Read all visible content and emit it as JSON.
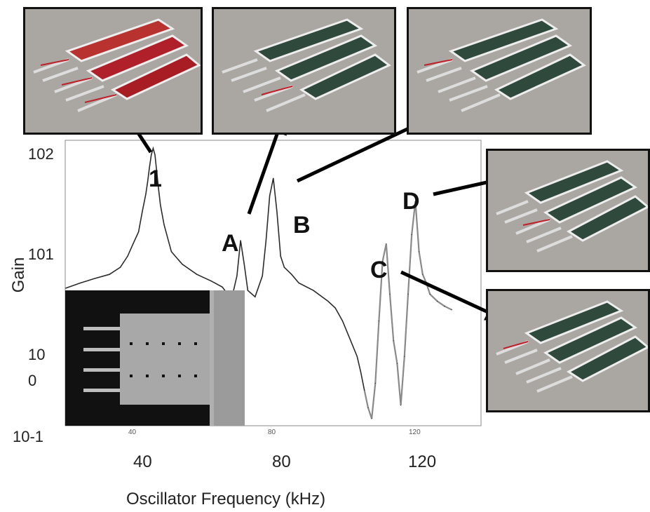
{
  "chart": {
    "y_axis_title": "Gain",
    "x_axis_title": "Oscillator Frequency (kHz)",
    "y_ticks": [
      {
        "id": "y102",
        "label": "102"
      },
      {
        "id": "y101",
        "label": "101"
      },
      {
        "id": "y10a",
        "label": "10"
      },
      {
        "id": "y0",
        "label": "0"
      },
      {
        "id": "y10m1",
        "label": "10-1"
      }
    ],
    "x_ticks": [
      {
        "id": "x40",
        "label": "40"
      },
      {
        "id": "x80",
        "label": "80"
      },
      {
        "id": "x120",
        "label": "120"
      }
    ],
    "inner_ticks": [
      "40",
      "80",
      "120"
    ],
    "peak_labels": {
      "p1": "1",
      "pA": "A",
      "pB": "B",
      "pC": "C",
      "pD": "D"
    }
  },
  "colors": {
    "curve_main": "#2b2b2b",
    "curve_grey": "#8a8a8a",
    "highlight": "#c0202a",
    "panel": "#2f4a3c",
    "thumb_bg": "#a9a6a1"
  },
  "chart_data": {
    "type": "line",
    "title": "",
    "xlabel": "Oscillator Frequency (kHz)",
    "ylabel": "Gain",
    "y_scale": "log",
    "xlim": [
      20,
      140
    ],
    "ylim": [
      0.1,
      160
    ],
    "grid": false,
    "series": [
      {
        "name": "",
        "x": [
          26,
          30,
          34,
          38,
          41,
          43,
          44.5,
          46,
          47,
          48,
          48.5,
          49,
          49.5,
          50,
          50.5,
          51,
          51.5,
          52,
          53,
          55,
          58,
          62,
          66,
          69,
          71,
          72,
          73,
          74,
          75,
          76,
          78,
          80,
          81,
          82,
          83,
          84,
          85,
          86,
          88,
          90,
          94,
          98,
          100,
          102,
          104,
          106,
          107,
          108,
          109,
          110,
          111,
          112,
          113,
          114,
          115,
          116,
          117,
          118,
          119,
          120,
          121,
          122,
          123,
          124,
          125,
          126,
          128,
          130,
          132
        ],
        "y": [
          3.5,
          4,
          4.5,
          5,
          6,
          8,
          11,
          15,
          25,
          40,
          55,
          80,
          110,
          130,
          110,
          70,
          45,
          30,
          18,
          9,
          6.5,
          5,
          4.2,
          3.6,
          2.8,
          3.2,
          4.8,
          12,
          6.5,
          3.3,
          2.8,
          4.8,
          12,
          38,
          60,
          25,
          8,
          6,
          5,
          4,
          3.3,
          2.5,
          2.1,
          1.5,
          0.95,
          0.6,
          0.4,
          0.25,
          0.16,
          0.12,
          0.3,
          1.5,
          7,
          11,
          3,
          0.9,
          0.5,
          0.17,
          0.6,
          3,
          14,
          33,
          9,
          5,
          4,
          3,
          2.5,
          2.2,
          2
        ]
      }
    ],
    "annotations": [
      "1",
      "A",
      "B",
      "C",
      "D"
    ]
  }
}
